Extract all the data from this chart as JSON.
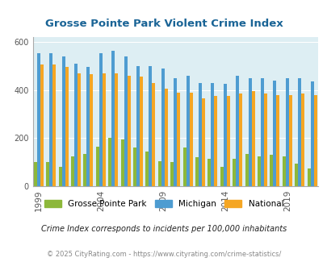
{
  "title": "Grosse Pointe Park Violent Crime Index",
  "years": [
    1999,
    2000,
    2001,
    2002,
    2003,
    2004,
    2005,
    2006,
    2007,
    2008,
    2009,
    2010,
    2011,
    2012,
    2013,
    2014,
    2015,
    2016,
    2017,
    2018,
    2019,
    2020,
    2021
  ],
  "gpp": [
    100,
    100,
    80,
    125,
    135,
    165,
    200,
    195,
    160,
    145,
    105,
    100,
    160,
    120,
    115,
    80,
    115,
    135,
    125,
    130,
    125,
    95,
    75
  ],
  "michigan": [
    555,
    555,
    540,
    510,
    495,
    555,
    565,
    540,
    500,
    500,
    490,
    450,
    460,
    430,
    430,
    425,
    460,
    450,
    450,
    440,
    450,
    450,
    435
  ],
  "national": [
    505,
    505,
    495,
    470,
    465,
    470,
    470,
    460,
    455,
    430,
    405,
    390,
    390,
    365,
    375,
    375,
    385,
    395,
    385,
    380,
    380,
    385,
    380
  ],
  "gpp_color": "#8db83a",
  "michigan_color": "#4e9cd1",
  "national_color": "#f5a623",
  "bg_color": "#ddeef3",
  "title_color": "#1a6496",
  "footer_text1": "Crime Index corresponds to incidents per 100,000 inhabitants",
  "footer_text2": "© 2025 CityRating.com - https://www.cityrating.com/crime-statistics/",
  "ylim": [
    0,
    620
  ],
  "yticks": [
    0,
    200,
    400,
    600
  ],
  "legend_labels": [
    "Grosse Pointe Park",
    "Michigan",
    "National"
  ]
}
